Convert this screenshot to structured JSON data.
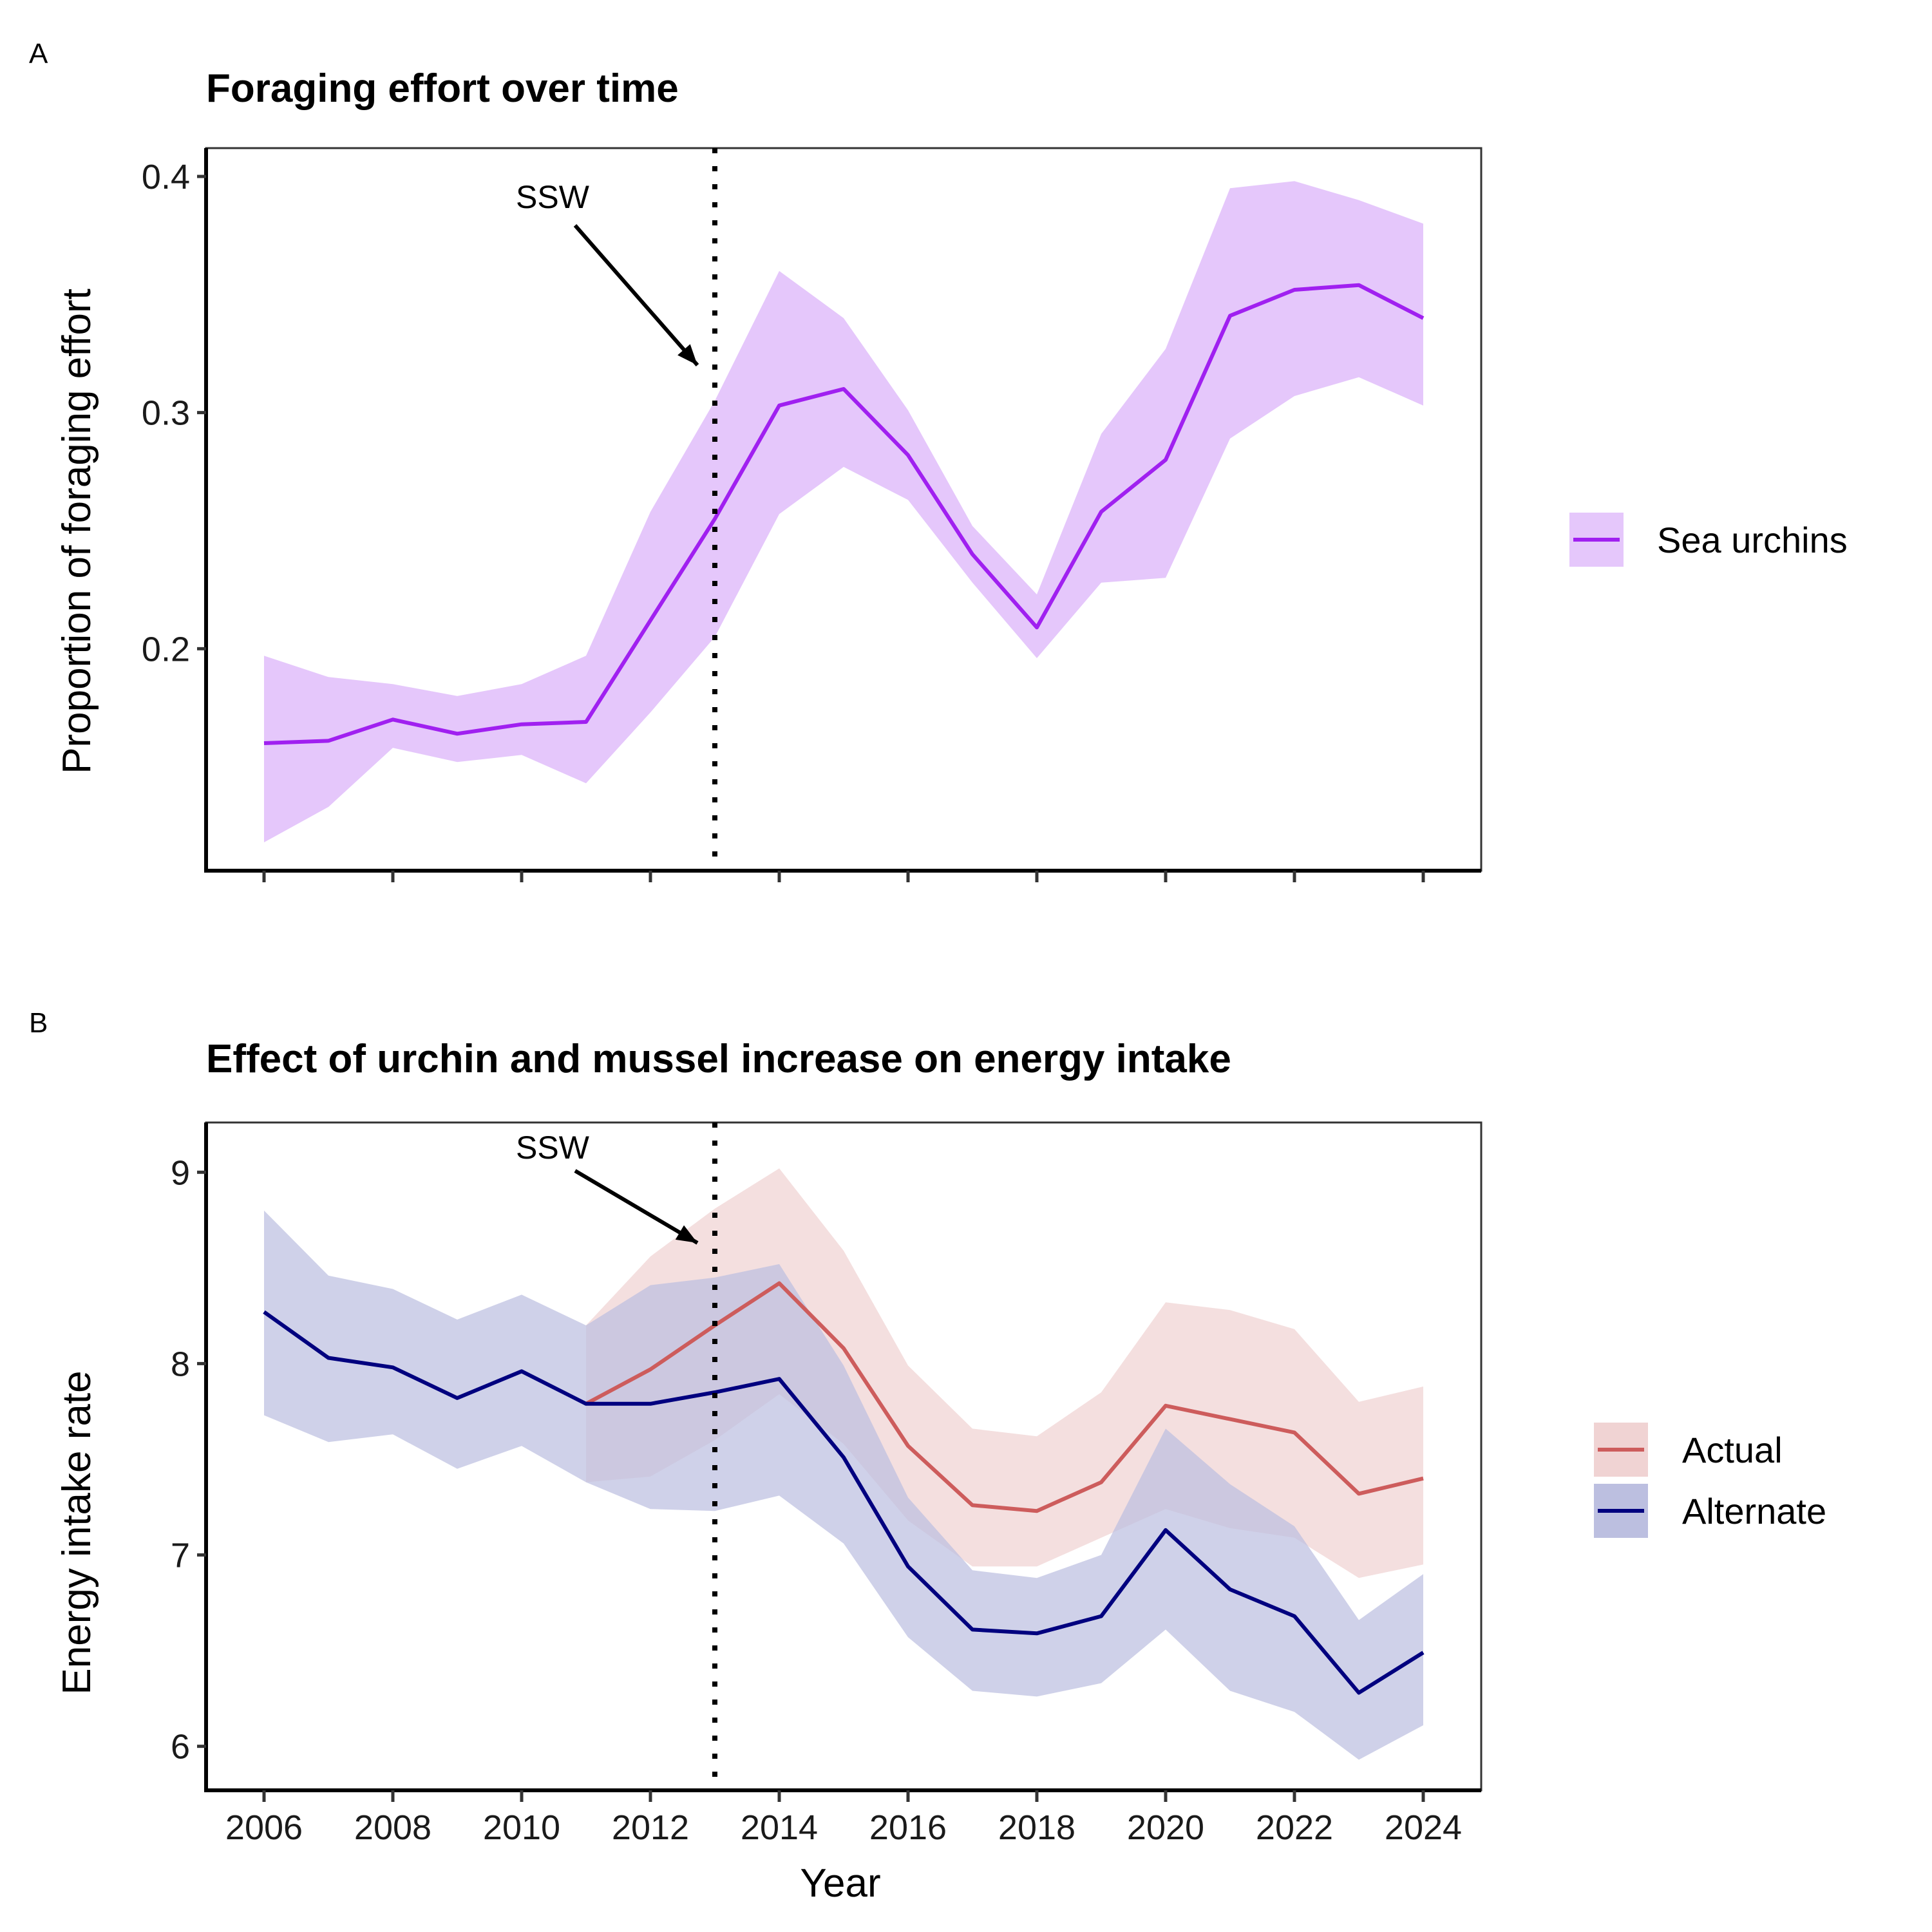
{
  "figure": {
    "panel_labels": [
      "A",
      "B"
    ],
    "annotation_text": "SSW",
    "annotation_x": 2013
  },
  "chart_data": [
    {
      "type": "line",
      "panel": "A",
      "title": "Foraging effort over time",
      "xlabel": "",
      "ylabel": "Proportion of foraging effort",
      "xlim": [
        2005.1,
        2024.9
      ],
      "ylim": [
        0.106,
        0.412
      ],
      "xticks": [
        2006,
        2008,
        2010,
        2012,
        2014,
        2016,
        2018,
        2020,
        2022,
        2024
      ],
      "xtick_labels_shown": false,
      "yticks": [
        0.2,
        0.3,
        0.4
      ],
      "ytick_labels": [
        "0.2",
        "0.3",
        "0.4"
      ],
      "grid": false,
      "legend_position": "right",
      "vline": {
        "x": 2013,
        "style": "dotted"
      },
      "x": [
        2006,
        2007,
        2008,
        2009,
        2010,
        2011,
        2012,
        2013,
        2014,
        2015,
        2016,
        2017,
        2018,
        2019,
        2020,
        2021,
        2022,
        2023,
        2024
      ],
      "series": [
        {
          "name": "Sea urchins",
          "color": "#a020f0",
          "ribbon_color": "#e5c7fb",
          "values": [
            0.16,
            0.161,
            0.17,
            0.164,
            0.168,
            0.169,
            0.212,
            0.255,
            0.303,
            0.31,
            0.282,
            0.24,
            0.209,
            0.258,
            0.28,
            0.341,
            0.352,
            0.354,
            0.34
          ],
          "lower": [
            0.118,
            0.133,
            0.158,
            0.152,
            0.155,
            0.143,
            0.173,
            0.205,
            0.257,
            0.277,
            0.263,
            0.228,
            0.196,
            0.228,
            0.23,
            0.289,
            0.307,
            0.315,
            0.303
          ],
          "upper": [
            0.197,
            0.188,
            0.185,
            0.18,
            0.185,
            0.197,
            0.258,
            0.305,
            0.36,
            0.34,
            0.301,
            0.252,
            0.223,
            0.291,
            0.327,
            0.395,
            0.398,
            0.39,
            0.38
          ]
        }
      ]
    },
    {
      "type": "line",
      "panel": "B",
      "title": "Effect of urchin and mussel increase on energy intake",
      "xlabel": "Year",
      "ylabel": "Energy intake rate",
      "xlim": [
        2005.1,
        2024.9
      ],
      "ylim": [
        5.77,
        9.26
      ],
      "xticks": [
        2006,
        2008,
        2010,
        2012,
        2014,
        2016,
        2018,
        2020,
        2022,
        2024
      ],
      "xtick_labels": [
        "2006",
        "2008",
        "2010",
        "2012",
        "2014",
        "2016",
        "2018",
        "2020",
        "2022",
        "2024"
      ],
      "yticks": [
        6,
        7,
        8,
        9
      ],
      "ytick_labels": [
        "6",
        "7",
        "8",
        "9"
      ],
      "grid": false,
      "legend_position": "right",
      "vline": {
        "x": 2013,
        "style": "dotted"
      },
      "series": [
        {
          "name": "Actual",
          "color": "#cd5c5c",
          "ribbon_color": "#f0d3d3",
          "x": [
            2011,
            2012,
            2013,
            2014,
            2015,
            2016,
            2017,
            2018,
            2019,
            2020,
            2021,
            2022,
            2023,
            2024
          ],
          "values": [
            7.79,
            7.97,
            8.2,
            8.42,
            8.08,
            7.57,
            7.26,
            7.23,
            7.38,
            7.78,
            7.71,
            7.64,
            7.32,
            7.4
          ],
          "lower": [
            7.38,
            7.41,
            7.6,
            7.84,
            7.58,
            7.18,
            6.94,
            6.94,
            7.09,
            7.24,
            7.14,
            7.09,
            6.88,
            6.95
          ],
          "upper": [
            8.2,
            8.56,
            8.81,
            9.02,
            8.59,
            7.99,
            7.66,
            7.62,
            7.85,
            8.32,
            8.28,
            8.18,
            7.8,
            7.88
          ]
        },
        {
          "name": "Alternate",
          "color": "#00007f",
          "ribbon_color": "#bcbfe0",
          "x": [
            2006,
            2007,
            2008,
            2009,
            2010,
            2011,
            2012,
            2013,
            2014,
            2015,
            2016,
            2017,
            2018,
            2019,
            2020,
            2021,
            2022,
            2023,
            2024
          ],
          "values": [
            8.27,
            8.03,
            7.98,
            7.82,
            7.96,
            7.79,
            7.79,
            7.85,
            7.92,
            7.51,
            6.94,
            6.61,
            6.59,
            6.68,
            7.13,
            6.82,
            6.68,
            6.28,
            6.49
          ],
          "lower": [
            7.73,
            7.59,
            7.63,
            7.45,
            7.57,
            7.38,
            7.24,
            7.23,
            7.31,
            7.06,
            6.57,
            6.29,
            6.26,
            6.33,
            6.61,
            6.29,
            6.18,
            5.93,
            6.11
          ],
          "upper": [
            8.8,
            8.46,
            8.39,
            8.23,
            8.36,
            8.2,
            8.41,
            8.45,
            8.52,
            7.99,
            7.3,
            6.92,
            6.88,
            7.0,
            7.66,
            7.37,
            7.15,
            6.66,
            6.9
          ]
        }
      ]
    }
  ]
}
